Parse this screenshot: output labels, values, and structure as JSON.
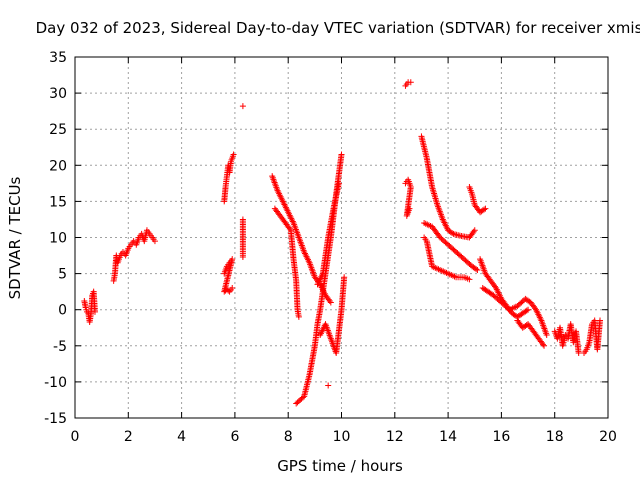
{
  "chart_data": {
    "type": "scatter",
    "title": "Day 032 of 2023, Sidereal Day-to-day VTEC variation (SDTVAR) for receiver xmis",
    "xlabel": "GPS time / hours",
    "ylabel": "SDTVAR / TECUs",
    "xlim": [
      0,
      20
    ],
    "ylim": [
      -15,
      35
    ],
    "xticks": [
      0,
      2,
      4,
      6,
      8,
      10,
      12,
      14,
      16,
      18,
      20
    ],
    "yticks": [
      -15,
      -10,
      -5,
      0,
      5,
      10,
      15,
      20,
      25,
      30,
      35
    ],
    "grid": true,
    "marker": "+",
    "series": [
      {
        "name": "SDTVAR",
        "color": "#ff0000",
        "segments": [
          [
            [
              0.35,
              1.2
            ],
            [
              0.4,
              0.3
            ],
            [
              0.45,
              -0.3
            ],
            [
              0.5,
              -0.5
            ],
            [
              0.55,
              -1.7
            ],
            [
              0.6,
              -0.5
            ],
            [
              0.65,
              2.0
            ],
            [
              0.7,
              2.5
            ],
            [
              0.75,
              -0.3
            ]
          ],
          [
            [
              1.45,
              4.0
            ],
            [
              1.5,
              5.0
            ],
            [
              1.55,
              7.5
            ],
            [
              1.6,
              6.5
            ],
            [
              1.7,
              7.5
            ],
            [
              1.8,
              8.0
            ],
            [
              1.9,
              7.5
            ],
            [
              2.0,
              8.5
            ],
            [
              2.1,
              9.0
            ],
            [
              2.2,
              9.5
            ],
            [
              2.3,
              9.0
            ],
            [
              2.4,
              10.0
            ],
            [
              2.5,
              10.5
            ],
            [
              2.6,
              9.5
            ],
            [
              2.7,
              11.0
            ],
            [
              2.8,
              10.5
            ],
            [
              2.9,
              10.0
            ],
            [
              3.0,
              9.5
            ]
          ],
          [
            [
              5.6,
              15.0
            ],
            [
              5.65,
              17.0
            ],
            [
              5.7,
              18.5
            ],
            [
              5.75,
              20.0
            ],
            [
              5.8,
              19.0
            ],
            [
              5.85,
              20.5
            ],
            [
              5.9,
              21.0
            ],
            [
              5.95,
              21.5
            ]
          ],
          [
            [
              5.6,
              5.0
            ],
            [
              5.7,
              6.0
            ],
            [
              5.8,
              6.5
            ],
            [
              5.9,
              7.0
            ],
            [
              5.6,
              2.5
            ],
            [
              5.7,
              2.8
            ],
            [
              5.8,
              2.5
            ],
            [
              5.9,
              3.0
            ]
          ],
          [
            [
              6.3,
              28.2
            ],
            [
              6.3,
              12.5
            ],
            [
              6.3,
              8.3
            ],
            [
              6.3,
              7.3
            ]
          ],
          [
            [
              7.4,
              18.5
            ],
            [
              7.6,
              16.5
            ],
            [
              7.8,
              15.0
            ],
            [
              8.0,
              13.5
            ],
            [
              8.2,
              12.0
            ],
            [
              8.4,
              10.0
            ],
            [
              8.6,
              8.0
            ],
            [
              8.8,
              6.5
            ],
            [
              9.0,
              4.5
            ],
            [
              9.2,
              3.5
            ],
            [
              9.4,
              2.0
            ],
            [
              9.6,
              1.0
            ]
          ],
          [
            [
              7.5,
              14.0
            ],
            [
              7.7,
              13.0
            ],
            [
              7.9,
              12.0
            ],
            [
              8.1,
              11.0
            ],
            [
              8.2,
              7.0
            ],
            [
              8.3,
              4.0
            ],
            [
              8.35,
              0.0
            ],
            [
              8.4,
              -1.0
            ]
          ],
          [
            [
              8.3,
              -13.0
            ],
            [
              8.6,
              -12.0
            ],
            [
              8.8,
              -9.0
            ],
            [
              9.0,
              -5.0
            ],
            [
              9.1,
              -2.0
            ],
            [
              9.2,
              0.0
            ],
            [
              9.4,
              5.0
            ],
            [
              9.6,
              10.0
            ],
            [
              9.8,
              16.0
            ],
            [
              10.0,
              21.5
            ]
          ],
          [
            [
              9.1,
              3.5
            ],
            [
              9.3,
              5.0
            ],
            [
              9.5,
              10.0
            ],
            [
              9.7,
              14.0
            ],
            [
              9.9,
              17.5
            ]
          ],
          [
            [
              9.2,
              -3.5
            ],
            [
              9.4,
              -2.0
            ],
            [
              9.6,
              -4.0
            ],
            [
              9.8,
              -6.0
            ],
            [
              10.0,
              0.0
            ],
            [
              10.1,
              4.5
            ]
          ],
          [
            [
              9.5,
              -10.5
            ]
          ],
          [
            [
              12.4,
              31.0
            ],
            [
              12.5,
              31.5
            ],
            [
              12.6,
              31.5
            ]
          ],
          [
            [
              12.4,
              17.5
            ],
            [
              12.5,
              18.0
            ],
            [
              12.6,
              17.0
            ],
            [
              12.45,
              13.0
            ],
            [
              12.55,
              14.0
            ]
          ],
          [
            [
              13.0,
              24.0
            ],
            [
              13.2,
              21.0
            ],
            [
              13.4,
              17.0
            ],
            [
              13.6,
              14.5
            ],
            [
              13.8,
              12.5
            ],
            [
              14.0,
              11.0
            ],
            [
              14.2,
              10.5
            ],
            [
              14.5,
              10.2
            ],
            [
              14.8,
              10.0
            ],
            [
              15.0,
              11.0
            ]
          ],
          [
            [
              13.1,
              12.0
            ],
            [
              13.4,
              11.5
            ],
            [
              13.7,
              10.0
            ],
            [
              14.0,
              9.0
            ],
            [
              14.3,
              8.0
            ],
            [
              14.6,
              7.0
            ],
            [
              14.9,
              6.0
            ],
            [
              15.1,
              5.5
            ]
          ],
          [
            [
              13.1,
              10.0
            ],
            [
              13.2,
              9.5
            ],
            [
              13.4,
              6.0
            ],
            [
              13.7,
              5.5
            ],
            [
              14.0,
              5.0
            ],
            [
              14.3,
              4.5
            ],
            [
              14.6,
              4.5
            ],
            [
              14.8,
              4.2
            ]
          ],
          [
            [
              14.8,
              17.0
            ],
            [
              14.9,
              16.0
            ],
            [
              15.0,
              14.5
            ],
            [
              15.2,
              13.5
            ],
            [
              15.4,
              14.0
            ]
          ],
          [
            [
              15.2,
              7.0
            ],
            [
              15.4,
              5.0
            ],
            [
              15.6,
              4.0
            ],
            [
              15.8,
              3.0
            ],
            [
              16.0,
              1.5
            ],
            [
              16.2,
              0.5
            ],
            [
              16.4,
              -0.5
            ],
            [
              16.6,
              -1.0
            ],
            [
              16.8,
              -0.5
            ],
            [
              17.0,
              0.0
            ]
          ],
          [
            [
              15.3,
              3.0
            ],
            [
              15.5,
              2.5
            ],
            [
              15.7,
              2.0
            ],
            [
              16.0,
              1.0
            ],
            [
              16.3,
              0.0
            ],
            [
              16.6,
              0.5
            ],
            [
              16.9,
              1.5
            ],
            [
              17.1,
              1.0
            ],
            [
              17.3,
              0.0
            ],
            [
              17.5,
              -1.5
            ],
            [
              17.7,
              -3.5
            ]
          ],
          [
            [
              16.6,
              -1.5
            ],
            [
              16.8,
              -2.5
            ],
            [
              17.0,
              -2.0
            ],
            [
              17.2,
              -3.0
            ],
            [
              17.4,
              -4.0
            ],
            [
              17.6,
              -5.0
            ]
          ],
          [
            [
              18.0,
              -3.0
            ],
            [
              18.1,
              -4.0
            ],
            [
              18.2,
              -2.5
            ],
            [
              18.3,
              -5.0
            ],
            [
              18.4,
              -3.5
            ],
            [
              18.5,
              -4.0
            ],
            [
              18.6,
              -2.0
            ],
            [
              18.7,
              -4.5
            ],
            [
              18.8,
              -3.0
            ],
            [
              18.9,
              -6.0
            ]
          ],
          [
            [
              19.1,
              -6.0
            ],
            [
              19.2,
              -5.5
            ],
            [
              19.3,
              -4.5
            ],
            [
              19.4,
              -2.0
            ],
            [
              19.5,
              -1.5
            ],
            [
              19.6,
              -5.5
            ],
            [
              19.7,
              -1.5
            ]
          ]
        ]
      }
    ]
  }
}
